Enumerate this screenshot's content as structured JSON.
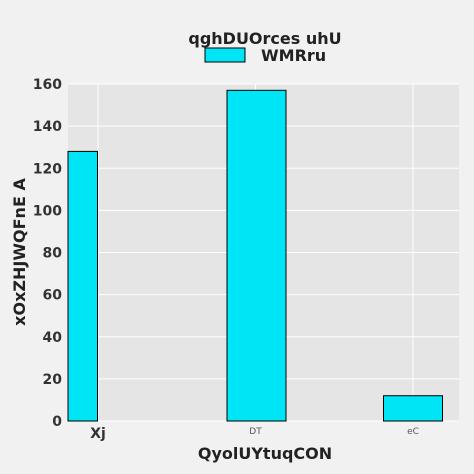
{
  "chart_data": {
    "type": "bar",
    "title": "qghDUOrces uhU",
    "xlabel": "QyolUYtuqCON",
    "ylabel": "xOxZHJWQFnE A",
    "categories": [
      "Xj",
      "DT",
      "eC"
    ],
    "series": [
      {
        "name": "WMRru",
        "values": [
          128,
          157,
          12
        ]
      }
    ],
    "ylim": [
      0,
      160
    ],
    "yticks": [
      0,
      20,
      40,
      60,
      80,
      100,
      120,
      140,
      160
    ],
    "grid": true,
    "legend_position": "top-center",
    "colors": {
      "bar_fill": "#00e5f5",
      "bar_stroke": "#000000",
      "plot_background": "#e5e5e5",
      "page_background": "#f1f1f1",
      "grid": "#ffffff"
    }
  }
}
